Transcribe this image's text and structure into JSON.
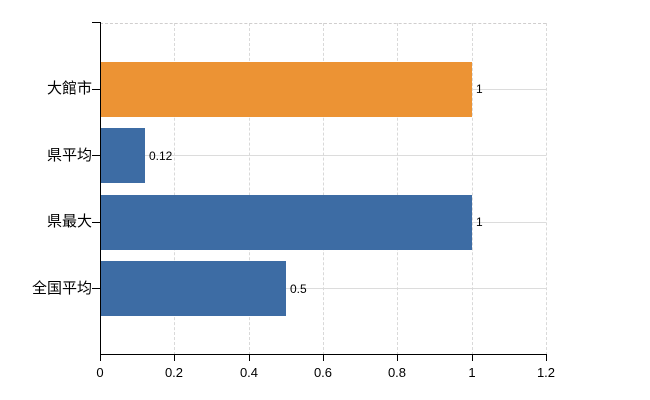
{
  "chart_data": {
    "type": "bar",
    "orientation": "horizontal",
    "title": "",
    "xlabel": "",
    "ylabel": "",
    "categories": [
      "大館市",
      "県平均",
      "県最大",
      "全国平均"
    ],
    "values": [
      1,
      0.12,
      1,
      0.5
    ],
    "value_labels": [
      "1",
      "0.12",
      "1",
      "0.5"
    ],
    "bar_colors": [
      "#EC9334",
      "#3D6CA4",
      "#3D6CA4",
      "#3D6CA4"
    ],
    "x_ticks": [
      0,
      0.2,
      0.4,
      0.6,
      0.8,
      1,
      1.2
    ],
    "x_tick_labels": [
      "0",
      "0.2",
      "0.4",
      "0.6",
      "0.8",
      "1",
      "1.2"
    ],
    "xlim": [
      0,
      1.2
    ],
    "grid": true,
    "legend": false,
    "colors": {
      "highlight_bar": "#EC9334",
      "default_bar": "#3D6CA4",
      "grid": "#D9D9D9",
      "axis": "#000000",
      "text": "#000000",
      "background": "#FFFFFF"
    }
  }
}
